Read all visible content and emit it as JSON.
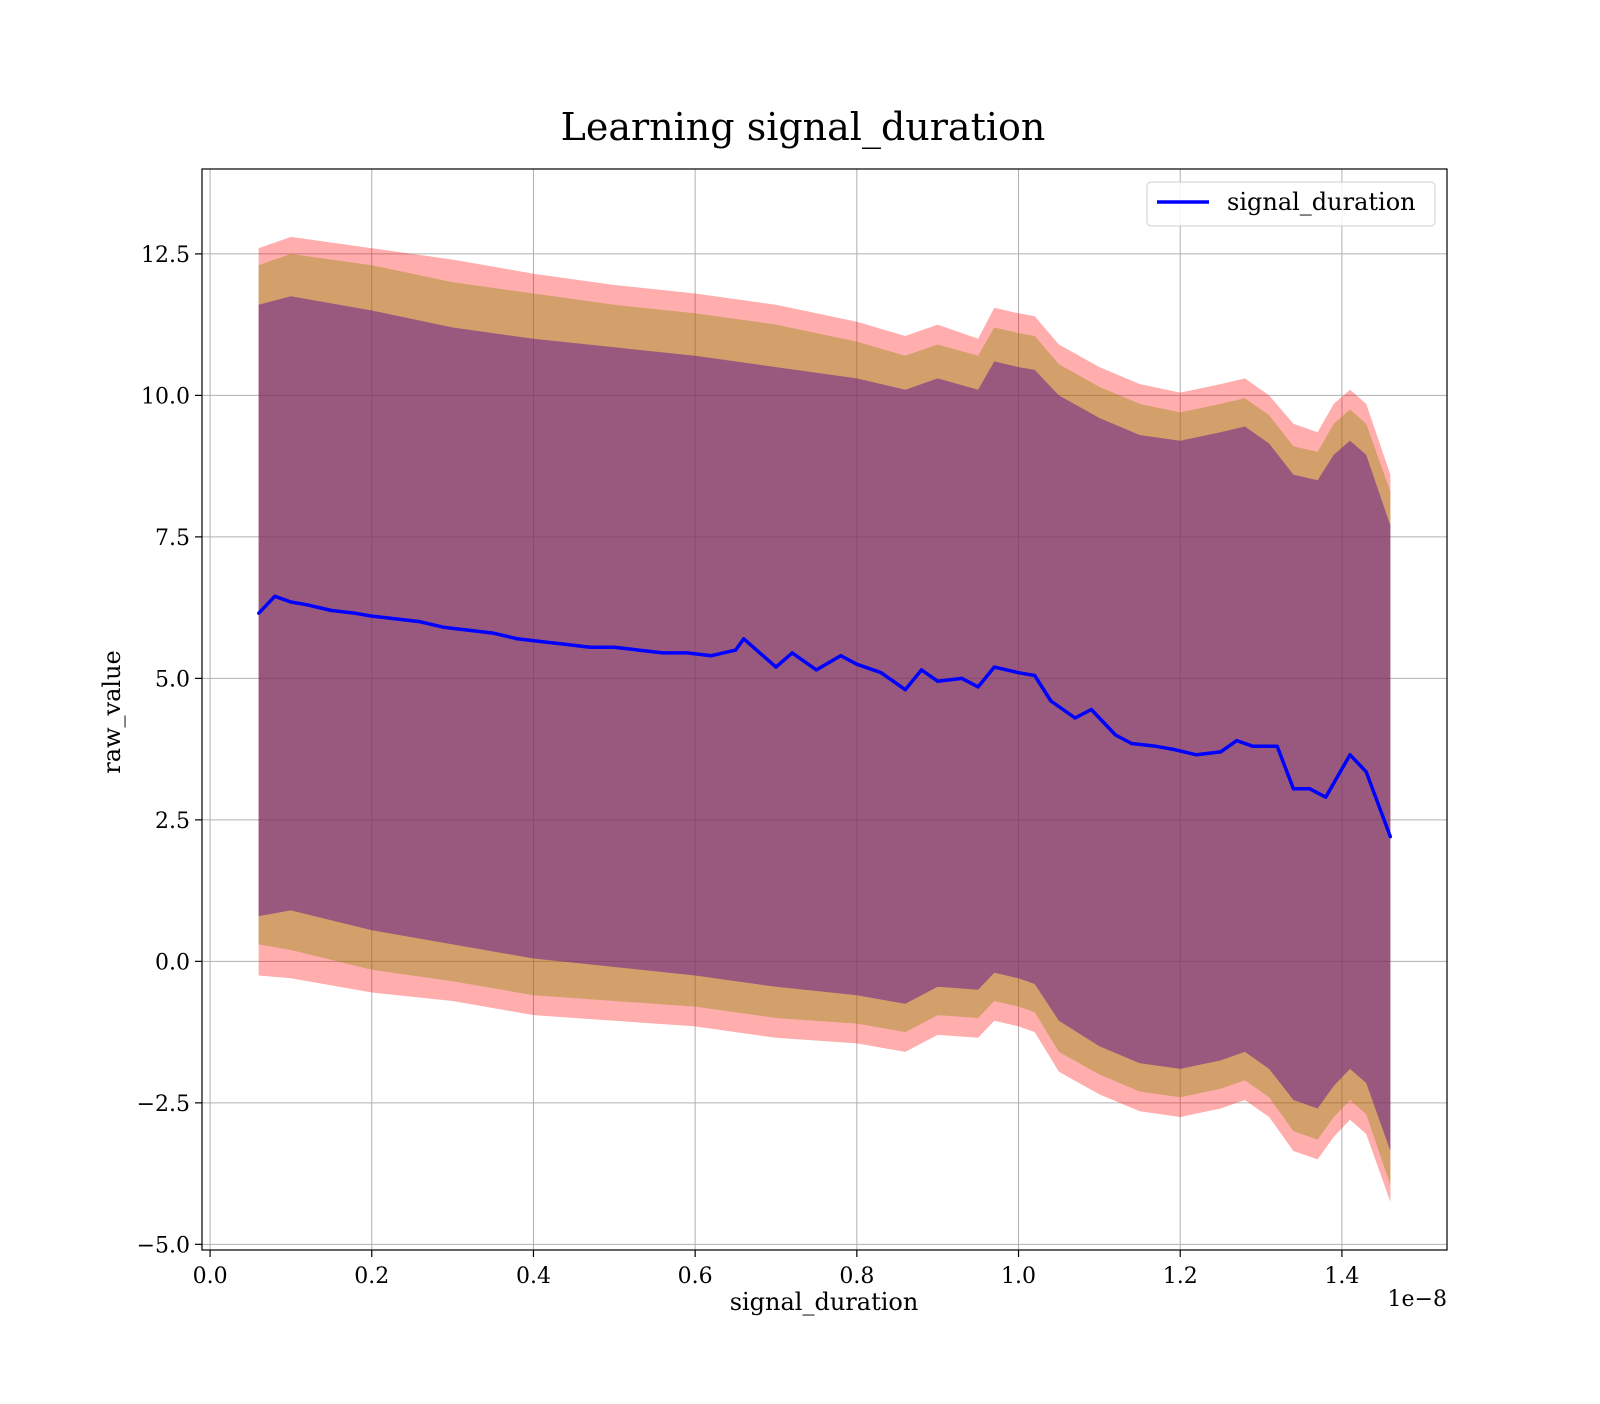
{
  "chart_data": {
    "type": "line",
    "title": "Learning signal_duration",
    "xlabel": "signal_duration",
    "ylabel": "raw_value",
    "x_offset_label": "1e−8",
    "xlim": [
      -0.01,
      1.53
    ],
    "ylim": [
      -5.1,
      14.0
    ],
    "x_ticks": [
      0.0,
      0.2,
      0.4,
      0.6,
      0.8,
      1.0,
      1.2,
      1.4
    ],
    "x_tick_labels": [
      "0.0",
      "0.2",
      "0.4",
      "0.6",
      "0.8",
      "1.0",
      "1.2",
      "1.4"
    ],
    "y_ticks": [
      -5.0,
      -2.5,
      0.0,
      2.5,
      5.0,
      7.5,
      10.0,
      12.5
    ],
    "y_tick_labels": [
      "−5.0",
      "−2.5",
      "0.0",
      "2.5",
      "5.0",
      "7.5",
      "10.0",
      "12.5"
    ],
    "grid": true,
    "legend_position": "top-right",
    "colors": {
      "mean_line": "#0000ff",
      "outer_band": "#ff0000",
      "middle_band": "#8b8b00",
      "inner_band": "#6a1f8f"
    },
    "series": [
      {
        "name": "signal_duration",
        "x": [
          0.06,
          0.08,
          0.1,
          0.12,
          0.15,
          0.18,
          0.2,
          0.23,
          0.26,
          0.29,
          0.32,
          0.35,
          0.38,
          0.41,
          0.44,
          0.47,
          0.5,
          0.53,
          0.56,
          0.59,
          0.62,
          0.65,
          0.66,
          0.7,
          0.72,
          0.75,
          0.78,
          0.8,
          0.83,
          0.86,
          0.88,
          0.9,
          0.93,
          0.95,
          0.97,
          1.0,
          1.02,
          1.04,
          1.07,
          1.09,
          1.12,
          1.14,
          1.17,
          1.19,
          1.22,
          1.25,
          1.27,
          1.29,
          1.32,
          1.34,
          1.36,
          1.38,
          1.41,
          1.43,
          1.46
        ],
        "values": [
          6.15,
          6.45,
          6.35,
          6.3,
          6.2,
          6.15,
          6.1,
          6.05,
          6.0,
          5.9,
          5.85,
          5.8,
          5.7,
          5.65,
          5.6,
          5.55,
          5.55,
          5.5,
          5.45,
          5.45,
          5.4,
          5.5,
          5.7,
          5.2,
          5.45,
          5.15,
          5.4,
          5.25,
          5.1,
          4.8,
          5.15,
          4.95,
          5.0,
          4.85,
          5.2,
          5.1,
          5.05,
          4.6,
          4.3,
          4.45,
          4.0,
          3.85,
          3.8,
          3.75,
          3.65,
          3.7,
          3.9,
          3.8,
          3.8,
          3.05,
          3.05,
          2.9,
          3.65,
          3.35,
          2.2
        ]
      }
    ],
    "bands": [
      {
        "role": "outer",
        "x": [
          0.06,
          0.1,
          0.2,
          0.3,
          0.4,
          0.5,
          0.6,
          0.7,
          0.8,
          0.86,
          0.9,
          0.95,
          0.97,
          1.0,
          1.02,
          1.05,
          1.1,
          1.15,
          1.2,
          1.25,
          1.28,
          1.31,
          1.34,
          1.37,
          1.39,
          1.41,
          1.43,
          1.46
        ],
        "upper": [
          12.6,
          12.8,
          12.6,
          12.4,
          12.15,
          11.95,
          11.8,
          11.6,
          11.3,
          11.05,
          11.25,
          11.0,
          11.55,
          11.45,
          11.4,
          10.9,
          10.5,
          10.2,
          10.05,
          10.2,
          10.3,
          10.0,
          9.5,
          9.35,
          9.85,
          10.1,
          9.85,
          8.6
        ],
        "lower": [
          -0.25,
          -0.3,
          -0.55,
          -0.7,
          -0.95,
          -1.05,
          -1.15,
          -1.35,
          -1.45,
          -1.6,
          -1.3,
          -1.35,
          -1.05,
          -1.15,
          -1.25,
          -1.95,
          -2.35,
          -2.65,
          -2.75,
          -2.6,
          -2.45,
          -2.75,
          -3.35,
          -3.5,
          -3.1,
          -2.8,
          -3.05,
          -4.25
        ]
      },
      {
        "role": "middle",
        "x": [
          0.06,
          0.1,
          0.2,
          0.3,
          0.4,
          0.5,
          0.6,
          0.7,
          0.8,
          0.86,
          0.9,
          0.95,
          0.97,
          1.0,
          1.02,
          1.05,
          1.1,
          1.15,
          1.2,
          1.25,
          1.28,
          1.31,
          1.34,
          1.37,
          1.39,
          1.41,
          1.43,
          1.46
        ],
        "upper": [
          12.3,
          12.5,
          12.3,
          12.0,
          11.8,
          11.6,
          11.45,
          11.25,
          10.95,
          10.7,
          10.9,
          10.7,
          11.2,
          11.1,
          11.05,
          10.55,
          10.15,
          9.85,
          9.7,
          9.85,
          9.95,
          9.65,
          9.1,
          9.0,
          9.5,
          9.75,
          9.5,
          8.3
        ],
        "lower": [
          0.3,
          0.2,
          -0.15,
          -0.35,
          -0.6,
          -0.7,
          -0.8,
          -1.0,
          -1.1,
          -1.25,
          -0.95,
          -1.0,
          -0.7,
          -0.8,
          -0.9,
          -1.6,
          -2.0,
          -2.3,
          -2.4,
          -2.25,
          -2.1,
          -2.4,
          -3.0,
          -3.15,
          -2.75,
          -2.45,
          -2.7,
          -3.95
        ]
      },
      {
        "role": "inner",
        "x": [
          0.06,
          0.1,
          0.2,
          0.3,
          0.4,
          0.5,
          0.6,
          0.7,
          0.8,
          0.86,
          0.9,
          0.95,
          0.97,
          1.0,
          1.02,
          1.05,
          1.1,
          1.15,
          1.2,
          1.25,
          1.28,
          1.31,
          1.34,
          1.37,
          1.39,
          1.41,
          1.43,
          1.46
        ],
        "upper": [
          11.6,
          11.75,
          11.5,
          11.2,
          11.0,
          10.85,
          10.7,
          10.5,
          10.3,
          10.1,
          10.3,
          10.1,
          10.6,
          10.5,
          10.45,
          10.0,
          9.6,
          9.3,
          9.2,
          9.35,
          9.45,
          9.15,
          8.6,
          8.5,
          8.95,
          9.2,
          8.95,
          7.7
        ],
        "lower": [
          0.8,
          0.9,
          0.55,
          0.3,
          0.05,
          -0.1,
          -0.25,
          -0.45,
          -0.6,
          -0.75,
          -0.45,
          -0.5,
          -0.2,
          -0.3,
          -0.4,
          -1.05,
          -1.5,
          -1.8,
          -1.9,
          -1.75,
          -1.6,
          -1.9,
          -2.45,
          -2.6,
          -2.2,
          -1.9,
          -2.15,
          -3.35
        ]
      }
    ]
  }
}
